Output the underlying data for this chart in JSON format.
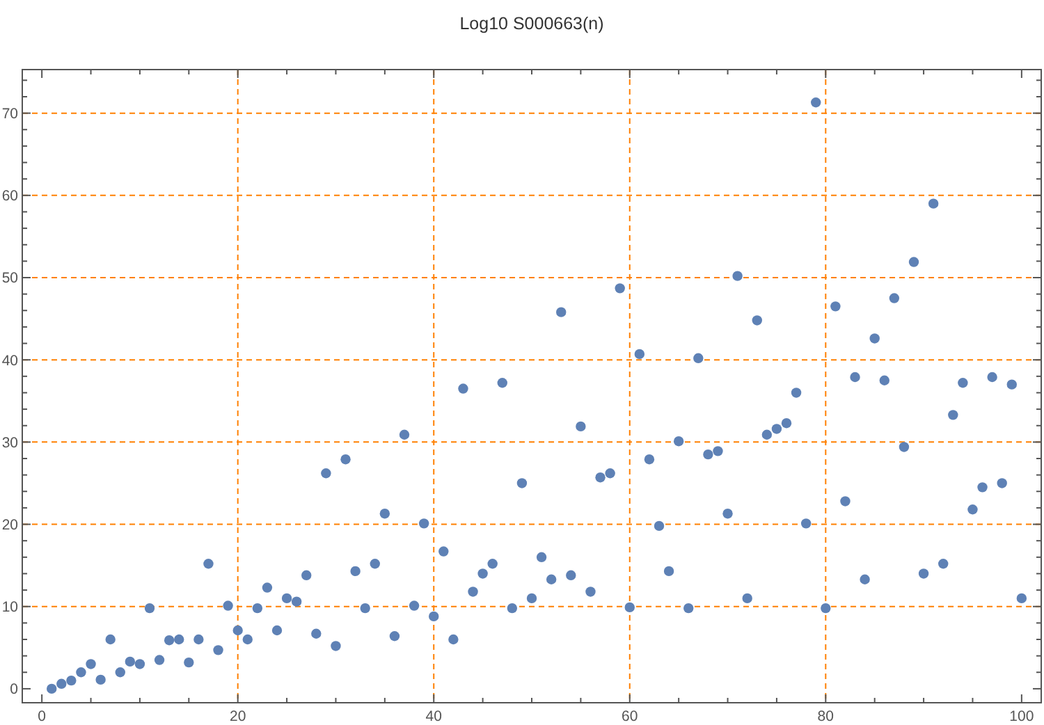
{
  "chart_data": {
    "type": "scatter",
    "title": "Log10 S000663(n)",
    "x": [
      1,
      2,
      3,
      4,
      5,
      6,
      7,
      8,
      9,
      10,
      11,
      12,
      13,
      14,
      15,
      16,
      17,
      18,
      19,
      20,
      21,
      22,
      23,
      24,
      25,
      26,
      27,
      28,
      29,
      30,
      31,
      32,
      33,
      34,
      35,
      36,
      37,
      38,
      39,
      40,
      41,
      42,
      43,
      44,
      45,
      46,
      47,
      48,
      49,
      50,
      51,
      52,
      53,
      54,
      55,
      56,
      57,
      58,
      59,
      60,
      61,
      62,
      63,
      64,
      65,
      66,
      67,
      68,
      69,
      70,
      71,
      72,
      73,
      74,
      75,
      76,
      77,
      78,
      79,
      80,
      81,
      82,
      83,
      84,
      85,
      86,
      87,
      88,
      89,
      90,
      91,
      92,
      93,
      94,
      95,
      96,
      97,
      98,
      99,
      100
    ],
    "series": [
      {
        "color": "#5e81b5",
        "values": [
          0.0,
          0.6,
          1.0,
          2.0,
          3.0,
          1.1,
          6.0,
          2.0,
          3.3,
          3.0,
          9.8,
          3.5,
          5.9,
          6.0,
          3.2,
          6.0,
          15.2,
          4.7,
          10.1,
          7.1,
          6.0,
          9.8,
          12.3,
          7.1,
          11.0,
          10.6,
          13.8,
          6.7,
          26.2,
          5.2,
          27.9,
          14.3,
          9.8,
          15.2,
          21.3,
          6.4,
          30.9,
          10.1,
          20.1,
          8.8,
          16.7,
          6.0,
          36.5,
          11.8,
          14.0,
          15.2,
          37.2,
          9.8,
          25.0,
          11.0,
          16.0,
          13.3,
          45.8,
          13.8,
          31.9,
          11.8,
          25.7,
          26.2,
          48.7,
          9.9,
          40.7,
          27.9,
          19.8,
          14.3,
          30.1,
          9.8,
          40.2,
          28.5,
          28.9,
          21.3,
          50.2,
          11.0,
          44.8,
          30.9,
          31.6,
          32.3,
          36.0,
          20.1,
          71.3,
          9.8,
          46.5,
          22.8,
          37.9,
          13.3,
          42.6,
          37.5,
          47.5,
          29.4,
          51.9,
          14.0,
          59.0,
          15.2,
          33.3,
          37.2,
          21.8,
          24.5,
          37.9,
          25.0,
          37.0,
          11.0
        ]
      }
    ],
    "xlim": [
      -2,
      102
    ],
    "ylim": [
      -1.7,
      75.3
    ],
    "xticks": [
      0,
      {
        "value": 5,
        "label": null
      },
      {
        "value": 10,
        "label": null
      },
      {
        "value": 15,
        "label": null
      },
      20,
      {
        "value": 25,
        "label": null
      },
      {
        "value": 30,
        "label": null
      },
      {
        "value": 35,
        "label": null
      },
      40,
      {
        "value": 45,
        "label": null
      },
      {
        "value": 50,
        "label": null
      },
      {
        "value": 55,
        "label": null
      },
      60,
      {
        "value": 65,
        "label": null
      },
      {
        "value": 70,
        "label": null
      },
      {
        "value": 75,
        "label": null
      },
      80,
      {
        "value": 85,
        "label": null
      },
      {
        "value": 90,
        "label": null
      },
      {
        "value": 95,
        "label": null
      },
      100
    ],
    "yticks": [
      0,
      {
        "value": 2,
        "label": null
      },
      {
        "value": 4,
        "label": null
      },
      {
        "value": 6,
        "label": null
      },
      {
        "value": 8,
        "label": null
      },
      10,
      {
        "value": 12,
        "label": null
      },
      {
        "value": 14,
        "label": null
      },
      {
        "value": 16,
        "label": null
      },
      {
        "value": 18,
        "label": null
      },
      20,
      {
        "value": 22,
        "label": null
      },
      {
        "value": 24,
        "label": null
      },
      {
        "value": 26,
        "label": null
      },
      {
        "value": 28,
        "label": null
      },
      30,
      {
        "value": 32,
        "label": null
      },
      {
        "value": 34,
        "label": null
      },
      {
        "value": 36,
        "label": null
      },
      {
        "value": 38,
        "label": null
      },
      40,
      {
        "value": 42,
        "label": null
      },
      {
        "value": 44,
        "label": null
      },
      {
        "value": 46,
        "label": null
      },
      {
        "value": 48,
        "label": null
      },
      50,
      {
        "value": 52,
        "label": null
      },
      {
        "value": 54,
        "label": null
      },
      {
        "value": 56,
        "label": null
      },
      {
        "value": 58,
        "label": null
      },
      60,
      {
        "value": 62,
        "label": null
      },
      {
        "value": 64,
        "label": null
      },
      {
        "value": 66,
        "label": null
      },
      {
        "value": 68,
        "label": null
      },
      70,
      {
        "value": 72,
        "label": null
      },
      {
        "value": 74,
        "label": null
      }
    ],
    "grid": true,
    "marker": "circle"
  }
}
